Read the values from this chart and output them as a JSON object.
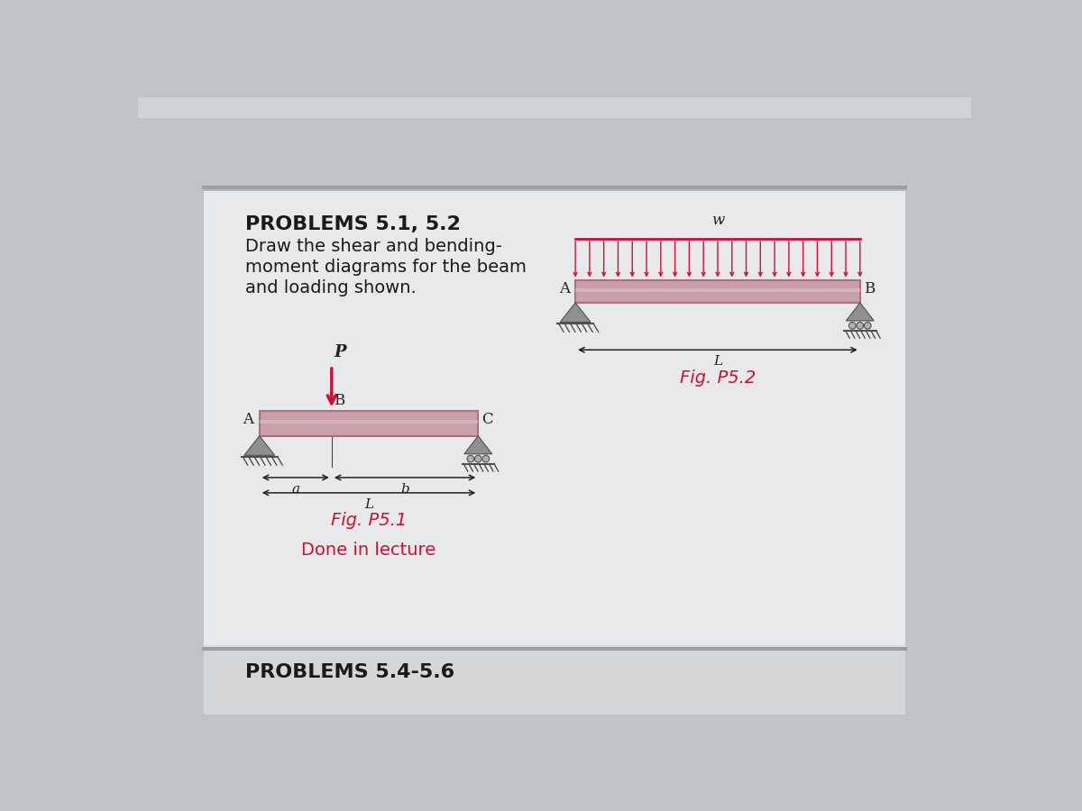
{
  "bg_outer": "#c0c4c8",
  "bg_top_strip": "#c8cbcf",
  "panel_main_color": "#e8e9ea",
  "panel_bottom_color": "#d4d6d8",
  "separator_color": "#9a9ea2",
  "title1": "PROBLEMS 5.1, 5.2",
  "text_lines": [
    "Draw the shear and bending-",
    "moment diagrams for the beam",
    "and loading shown."
  ],
  "fig_p51_caption": "Fig. P5.1",
  "fig_p52_caption": "Fig. P5.2",
  "done_in_lecture": "Done in lecture",
  "problems_bottom": "PROBLEMS 5.4-5.6",
  "beam_color": "#c9a0aa",
  "beam_edge": "#aa7080",
  "beam_shine": "#dbbcc4",
  "arrow_color": "#cc1133",
  "support_gray": "#909090",
  "support_dark": "#505050",
  "dim_color": "#222222",
  "label_color": "#222222",
  "caption_color": "#cc1133",
  "text_color": "#1a1a1a"
}
